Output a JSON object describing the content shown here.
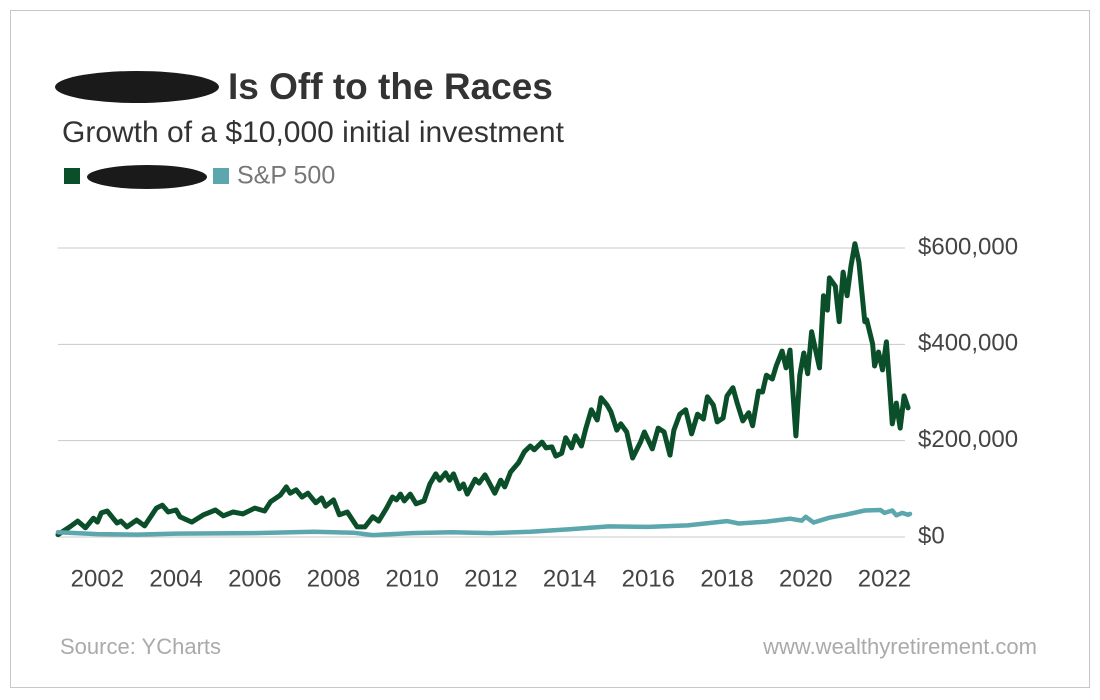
{
  "chart_data": {
    "type": "line",
    "title": "Is Off to the Races",
    "subtitle": "Growth of a $10,000 initial investment",
    "source": "Source: YCharts",
    "website": "www.wealthyretirement.com",
    "xlim": [
      2001.0,
      2022.7
    ],
    "xticks": [
      2002,
      2004,
      2006,
      2008,
      2010,
      2012,
      2014,
      2016,
      2018,
      2020,
      2022
    ],
    "ylim": [
      0,
      600000
    ],
    "yticks": [
      {
        "value": 0,
        "label": "$0"
      },
      {
        "value": 200000,
        "label": "$200,000"
      },
      {
        "value": 400000,
        "label": "$400,000"
      },
      {
        "value": 600000,
        "label": "$600,000"
      }
    ],
    "grid": true,
    "series": [
      {
        "color": "#0b4f2a",
        "x": [
          2001.0,
          2001.3,
          2001.5,
          2001.7,
          2001.9,
          2002.0,
          2002.1,
          2002.25,
          2002.5,
          2002.6,
          2002.75,
          2003.0,
          2003.2,
          2003.5,
          2003.65,
          2003.8,
          2004.0,
          2004.1,
          2004.4,
          2004.7,
          2005.0,
          2005.2,
          2005.45,
          2005.7,
          2006.0,
          2006.25,
          2006.4,
          2006.65,
          2006.8,
          2006.9,
          2007.05,
          2007.2,
          2007.35,
          2007.55,
          2007.7,
          2007.8,
          2008.0,
          2008.15,
          2008.35,
          2008.6,
          2008.8,
          2009.0,
          2009.15,
          2009.35,
          2009.5,
          2009.6,
          2009.7,
          2009.8,
          2009.95,
          2010.1,
          2010.3,
          2010.45,
          2010.6,
          2010.7,
          2010.85,
          2010.95,
          2011.05,
          2011.2,
          2011.3,
          2011.4,
          2011.6,
          2011.7,
          2011.85,
          2012.1,
          2012.25,
          2012.35,
          2012.5,
          2012.7,
          2012.85,
          2013.0,
          2013.1,
          2013.3,
          2013.4,
          2013.55,
          2013.65,
          2013.8,
          2013.9,
          2014.05,
          2014.15,
          2014.3,
          2014.4,
          2014.55,
          2014.7,
          2014.8,
          2014.95,
          2015.05,
          2015.2,
          2015.3,
          2015.45,
          2015.6,
          2015.8,
          2015.9,
          2016.1,
          2016.25,
          2016.4,
          2016.55,
          2016.65,
          2016.8,
          2016.95,
          2017.1,
          2017.25,
          2017.4,
          2017.5,
          2017.65,
          2017.75,
          2017.9,
          2018.0,
          2018.15,
          2018.25,
          2018.4,
          2018.55,
          2018.65,
          2018.8,
          2018.9,
          2019.0,
          2019.15,
          2019.25,
          2019.4,
          2019.5,
          2019.6,
          2019.75,
          2019.85,
          2019.95,
          2020.05,
          2020.15,
          2020.25,
          2020.35,
          2020.45,
          2020.55,
          2020.6,
          2020.75,
          2020.85,
          2020.95,
          2021.05,
          2021.15,
          2021.25,
          2021.35,
          2021.5,
          2021.55,
          2021.7,
          2021.75,
          2021.85,
          2021.95,
          2022.05,
          2022.2,
          2022.3,
          2022.4,
          2022.5,
          2022.6
        ],
        "values": [
          5000,
          21000,
          33000,
          19000,
          39000,
          31000,
          50000,
          54000,
          29000,
          33000,
          21000,
          35000,
          23000,
          60000,
          66000,
          52000,
          56000,
          42000,
          31000,
          46000,
          56000,
          44000,
          52000,
          48000,
          60000,
          54000,
          73000,
          87000,
          104000,
          91000,
          98000,
          83000,
          91000,
          71000,
          81000,
          64000,
          77000,
          46000,
          52000,
          21000,
          21000,
          42000,
          33000,
          60000,
          83000,
          77000,
          89000,
          75000,
          89000,
          69000,
          75000,
          110000,
          131000,
          118000,
          133000,
          118000,
          131000,
          100000,
          110000,
          89000,
          120000,
          112000,
          129000,
          91000,
          118000,
          104000,
          135000,
          154000,
          177000,
          189000,
          181000,
          197000,
          185000,
          187000,
          168000,
          174000,
          206000,
          185000,
          210000,
          189000,
          222000,
          264000,
          243000,
          289000,
          274000,
          260000,
          222000,
          235000,
          218000,
          164000,
          197000,
          218000,
          183000,
          226000,
          218000,
          170000,
          222000,
          255000,
          264000,
          214000,
          255000,
          245000,
          291000,
          274000,
          239000,
          247000,
          293000,
          310000,
          280000,
          241000,
          258000,
          231000,
          303000,
          301000,
          336000,
          328000,
          355000,
          386000,
          351000,
          388000,
          210000,
          336000,
          382000,
          339000,
          426000,
          388000,
          351000,
          501000,
          471000,
          538000,
          521000,
          447000,
          550000,
          501000,
          563000,
          609000,
          571000,
          447000,
          451000,
          401000,
          355000,
          384000,
          347000,
          405000,
          235000,
          278000,
          226000,
          293000,
          268000
        ]
      },
      {
        "name": "S&P 500",
        "color": "#5ba7ad",
        "x": [
          2001.0,
          2002.0,
          2003.0,
          2004.0,
          2006.0,
          2007.5,
          2008.5,
          2009.0,
          2010.0,
          2011.0,
          2012.0,
          2013.0,
          2014.0,
          2015.0,
          2016.0,
          2017.0,
          2018.0,
          2018.3,
          2019.0,
          2019.6,
          2019.9,
          2020.0,
          2020.2,
          2020.6,
          2021.0,
          2021.5,
          2021.9,
          2022.0,
          2022.2,
          2022.3,
          2022.45,
          2022.6,
          2022.65
        ],
        "values": [
          10000,
          6000,
          5000,
          7000,
          8000,
          11000,
          9000,
          4000,
          8000,
          10000,
          8000,
          11000,
          16000,
          22000,
          21000,
          24000,
          33000,
          28000,
          32000,
          38000,
          34000,
          42000,
          30000,
          40000,
          46000,
          55000,
          56000,
          50000,
          55000,
          45000,
          50000,
          46000,
          48000
        ]
      }
    ]
  }
}
